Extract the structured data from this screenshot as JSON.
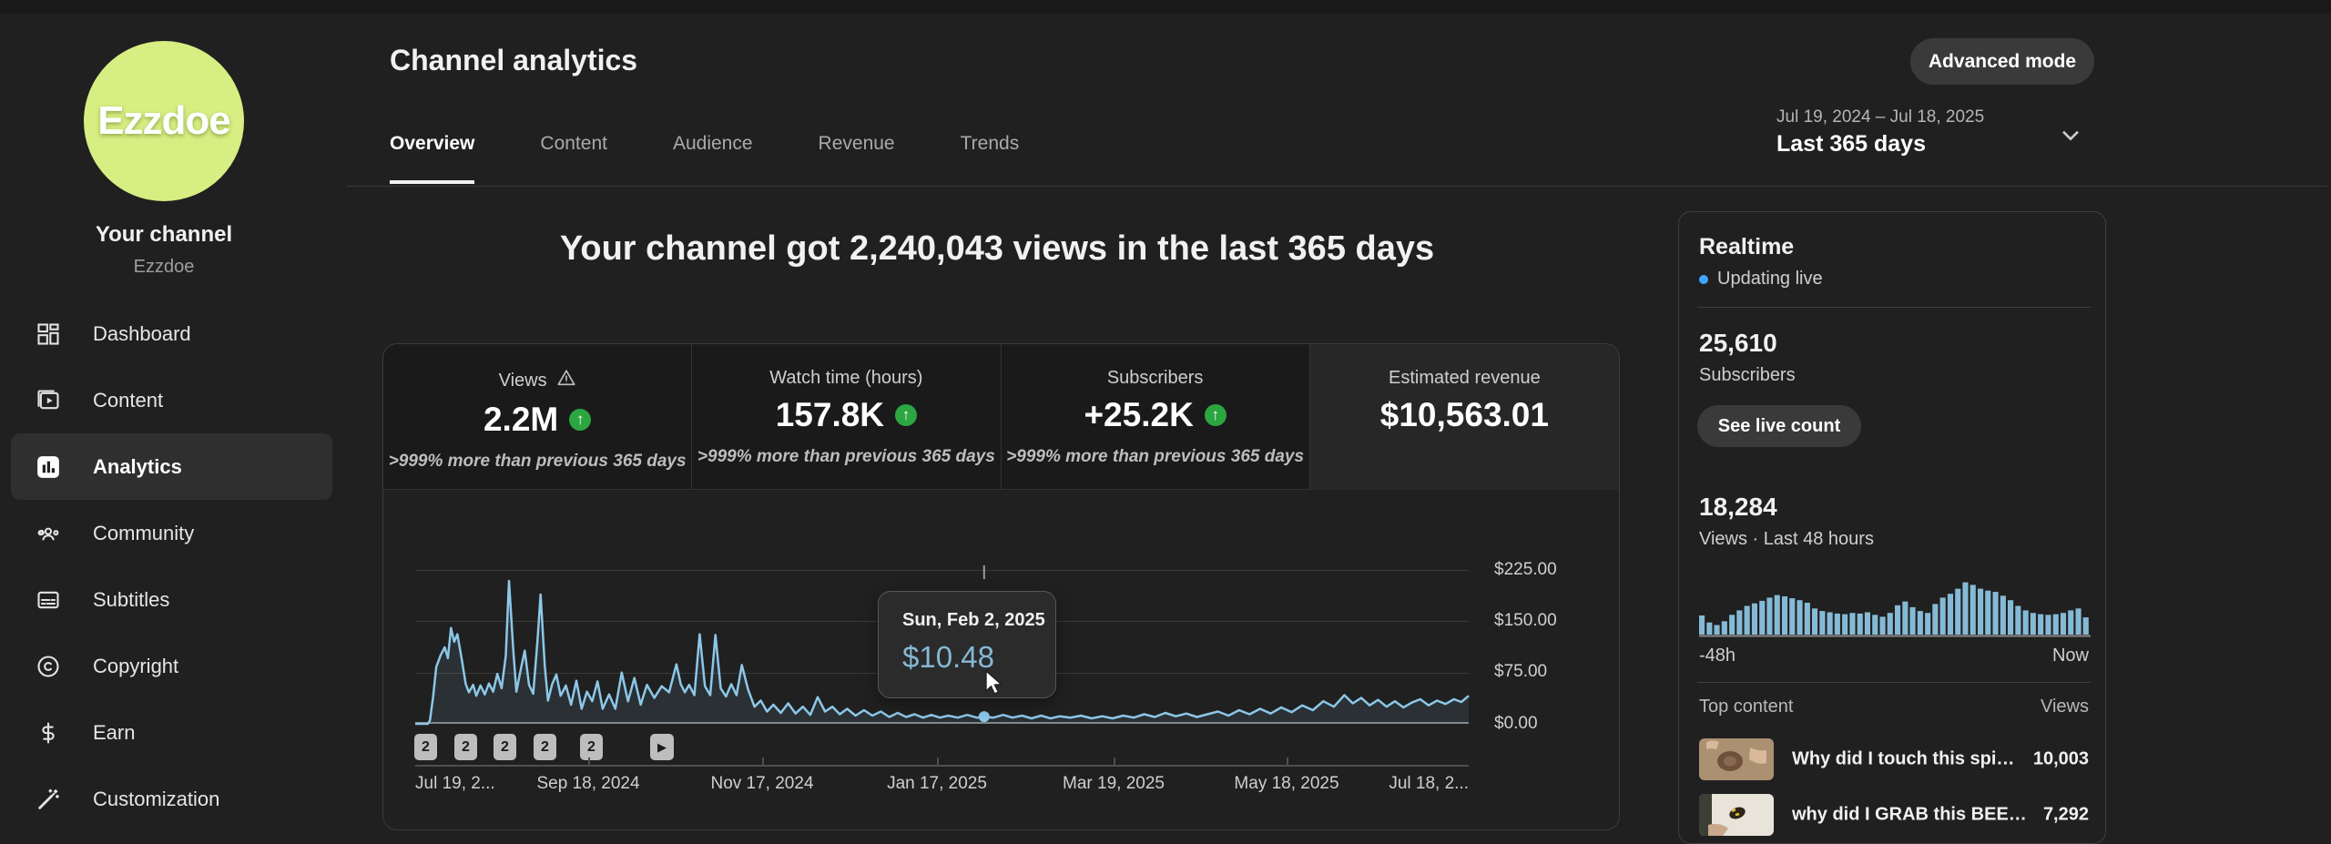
{
  "colors": {
    "accent_blue": "#3ea6ff",
    "chart_line": "#8cc7e8",
    "chart_fill": "rgba(140,199,232,0.10)",
    "tooltip_value": "#85b8d4",
    "positive_green": "#2ba640",
    "avatar_bg": "#d7ee82",
    "realtime_bar": "#85bad6"
  },
  "sidebar": {
    "avatar_text": "Ezzdoe",
    "your_channel": "Your channel",
    "channel_name": "Ezzdoe",
    "items": [
      {
        "label": "Dashboard",
        "icon": "dashboard-icon",
        "active": false
      },
      {
        "label": "Content",
        "icon": "content-icon",
        "active": false
      },
      {
        "label": "Analytics",
        "icon": "analytics-icon",
        "active": true
      },
      {
        "label": "Community",
        "icon": "community-icon",
        "active": false
      },
      {
        "label": "Subtitles",
        "icon": "subtitles-icon",
        "active": false
      },
      {
        "label": "Copyright",
        "icon": "copyright-icon",
        "active": false
      },
      {
        "label": "Earn",
        "icon": "earn-icon",
        "active": false
      },
      {
        "label": "Customization",
        "icon": "customization-icon",
        "active": false
      }
    ]
  },
  "header": {
    "title": "Channel analytics",
    "tabs": [
      {
        "label": "Overview",
        "active": true
      },
      {
        "label": "Content",
        "active": false
      },
      {
        "label": "Audience",
        "active": false
      },
      {
        "label": "Revenue",
        "active": false
      },
      {
        "label": "Trends",
        "active": false
      }
    ],
    "advanced_mode_label": "Advanced mode",
    "date_range": "Jul 19, 2024 – Jul 18, 2025",
    "date_preset": "Last 365 days"
  },
  "headline": "Your channel got 2,240,043 views in the last 365 days",
  "metrics": [
    {
      "label": "Views",
      "value": "2.2M",
      "delta": ">999% more than previous 365 days",
      "warning": true,
      "trend_up": true
    },
    {
      "label": "Watch time (hours)",
      "value": "157.8K",
      "delta": ">999% more than previous 365 days",
      "warning": false,
      "trend_up": true
    },
    {
      "label": "Subscribers",
      "value": "+25.2K",
      "delta": ">999% more than previous 365 days",
      "warning": false,
      "trend_up": true
    },
    {
      "label": "Estimated revenue",
      "value": "$10,563.01",
      "delta": "",
      "warning": false,
      "trend_up": false,
      "selected": true
    }
  ],
  "tooltip": {
    "date": "Sun, Feb 2, 2025",
    "value": "$10.48"
  },
  "chart_markers": [
    "2",
    "2",
    "2",
    "2",
    "2"
  ],
  "chart_data": [
    {
      "id": "estimated-revenue-daily",
      "type": "area",
      "title": "Estimated revenue per day, last 365 days (USD)",
      "ylim": [
        0,
        225
      ],
      "yticks": [
        "$225.00",
        "$150.00",
        "$75.00",
        "$0.00"
      ],
      "xticks": [
        "Jul 19, 2...",
        "Sep 18, 2024",
        "Nov 17, 2024",
        "Jan 17, 2025",
        "Mar 19, 2025",
        "May 18, 2025",
        "Jul 18, 2..."
      ],
      "grid": true,
      "highlight": {
        "x_frac": 0.54,
        "date": "Sun, Feb 2, 2025",
        "value": 10.48
      },
      "points": [
        [
          0,
          0
        ],
        [
          0.012,
          0
        ],
        [
          0.014,
          5
        ],
        [
          0.017,
          40
        ],
        [
          0.02,
          83
        ],
        [
          0.024,
          100
        ],
        [
          0.028,
          112
        ],
        [
          0.031,
          96
        ],
        [
          0.034,
          140
        ],
        [
          0.037,
          120
        ],
        [
          0.04,
          131
        ],
        [
          0.044,
          96
        ],
        [
          0.048,
          58
        ],
        [
          0.051,
          46
        ],
        [
          0.055,
          57
        ],
        [
          0.058,
          41
        ],
        [
          0.062,
          56
        ],
        [
          0.066,
          43
        ],
        [
          0.07,
          59
        ],
        [
          0.074,
          47
        ],
        [
          0.078,
          73
        ],
        [
          0.082,
          52
        ],
        [
          0.086,
          100
        ],
        [
          0.089,
          209
        ],
        [
          0.093,
          110
        ],
        [
          0.096,
          47
        ],
        [
          0.1,
          78
        ],
        [
          0.104,
          107
        ],
        [
          0.108,
          57
        ],
        [
          0.112,
          44
        ],
        [
          0.116,
          120
        ],
        [
          0.119,
          189
        ],
        [
          0.123,
          85
        ],
        [
          0.126,
          34
        ],
        [
          0.13,
          58
        ],
        [
          0.134,
          72
        ],
        [
          0.138,
          41
        ],
        [
          0.143,
          56
        ],
        [
          0.148,
          28
        ],
        [
          0.153,
          63
        ],
        [
          0.158,
          22
        ],
        [
          0.163,
          47
        ],
        [
          0.168,
          33
        ],
        [
          0.173,
          62
        ],
        [
          0.178,
          22
        ],
        [
          0.184,
          43
        ],
        [
          0.19,
          22
        ],
        [
          0.196,
          75
        ],
        [
          0.202,
          33
        ],
        [
          0.208,
          67
        ],
        [
          0.214,
          28
        ],
        [
          0.22,
          57
        ],
        [
          0.227,
          38
        ],
        [
          0.234,
          55
        ],
        [
          0.241,
          46
        ],
        [
          0.248,
          87
        ],
        [
          0.252,
          58
        ],
        [
          0.256,
          46
        ],
        [
          0.26,
          57
        ],
        [
          0.265,
          42
        ],
        [
          0.27,
          131
        ],
        [
          0.275,
          55
        ],
        [
          0.28,
          42
        ],
        [
          0.285,
          130
        ],
        [
          0.29,
          52
        ],
        [
          0.295,
          40
        ],
        [
          0.3,
          58
        ],
        [
          0.305,
          42
        ],
        [
          0.31,
          86
        ],
        [
          0.316,
          50
        ],
        [
          0.322,
          25
        ],
        [
          0.328,
          34
        ],
        [
          0.334,
          18
        ],
        [
          0.34,
          28
        ],
        [
          0.347,
          16
        ],
        [
          0.354,
          30
        ],
        [
          0.361,
          15
        ],
        [
          0.368,
          25
        ],
        [
          0.375,
          13
        ],
        [
          0.382,
          39
        ],
        [
          0.389,
          18
        ],
        [
          0.396,
          25
        ],
        [
          0.403,
          14
        ],
        [
          0.41,
          22
        ],
        [
          0.418,
          12
        ],
        [
          0.426,
          20
        ],
        [
          0.434,
          12
        ],
        [
          0.442,
          18
        ],
        [
          0.45,
          10
        ],
        [
          0.458,
          16
        ],
        [
          0.466,
          10
        ],
        [
          0.474,
          14
        ],
        [
          0.482,
          9
        ],
        [
          0.49,
          13
        ],
        [
          0.498,
          9
        ],
        [
          0.506,
          12
        ],
        [
          0.515,
          9
        ],
        [
          0.524,
          13
        ],
        [
          0.533,
          9
        ],
        [
          0.54,
          10.48
        ],
        [
          0.549,
          9
        ],
        [
          0.558,
          13
        ],
        [
          0.567,
          9
        ],
        [
          0.576,
          12
        ],
        [
          0.585,
          8
        ],
        [
          0.594,
          12
        ],
        [
          0.603,
          8
        ],
        [
          0.612,
          11
        ],
        [
          0.622,
          9
        ],
        [
          0.632,
          12
        ],
        [
          0.642,
          8
        ],
        [
          0.652,
          11
        ],
        [
          0.662,
          8
        ],
        [
          0.672,
          12
        ],
        [
          0.682,
          9
        ],
        [
          0.692,
          14
        ],
        [
          0.702,
          10
        ],
        [
          0.712,
          16
        ],
        [
          0.722,
          11
        ],
        [
          0.732,
          15
        ],
        [
          0.742,
          10
        ],
        [
          0.752,
          14
        ],
        [
          0.762,
          18
        ],
        [
          0.772,
          12
        ],
        [
          0.782,
          20
        ],
        [
          0.792,
          14
        ],
        [
          0.802,
          22
        ],
        [
          0.812,
          15
        ],
        [
          0.822,
          24
        ],
        [
          0.832,
          17
        ],
        [
          0.842,
          27
        ],
        [
          0.852,
          20
        ],
        [
          0.862,
          33
        ],
        [
          0.872,
          25
        ],
        [
          0.882,
          42
        ],
        [
          0.89,
          30
        ],
        [
          0.898,
          38
        ],
        [
          0.906,
          27
        ],
        [
          0.914,
          35
        ],
        [
          0.922,
          25
        ],
        [
          0.93,
          33
        ],
        [
          0.938,
          24
        ],
        [
          0.946,
          31
        ],
        [
          0.954,
          36
        ],
        [
          0.962,
          27
        ],
        [
          0.97,
          34
        ],
        [
          0.978,
          29
        ],
        [
          0.986,
          36
        ],
        [
          0.993,
          32
        ],
        [
          1,
          41
        ]
      ]
    },
    {
      "id": "realtime-views-48h",
      "type": "bar",
      "title": "Views, last 48 hours",
      "xlabels": [
        "-48h",
        "Now"
      ],
      "values": [
        30,
        19,
        15,
        21,
        31,
        38,
        45,
        49,
        53,
        58,
        62,
        60,
        57,
        54,
        50,
        41,
        37,
        35,
        33,
        32,
        34,
        33,
        35,
        31,
        28,
        34,
        46,
        52,
        43,
        37,
        34,
        48,
        58,
        64,
        72,
        82,
        78,
        72,
        69,
        67,
        61,
        54,
        45,
        38,
        34,
        32,
        31,
        32,
        34,
        38,
        41,
        27
      ]
    }
  ],
  "realtime": {
    "title": "Realtime",
    "status": "Updating live",
    "subscribers": "25,610",
    "subscribers_label": "Subscribers",
    "live_count_button": "See live count",
    "views_value": "18,284",
    "views_label": "Views · Last 48 hours",
    "axis_left": "-48h",
    "axis_right": "Now",
    "top_content": {
      "title": "Top content",
      "views_header": "Views",
      "rows": [
        {
          "title": "Why did I touch this spi…",
          "views": "10,003"
        },
        {
          "title": "why did I GRAB this BEE…",
          "views": "7,292"
        }
      ]
    }
  }
}
